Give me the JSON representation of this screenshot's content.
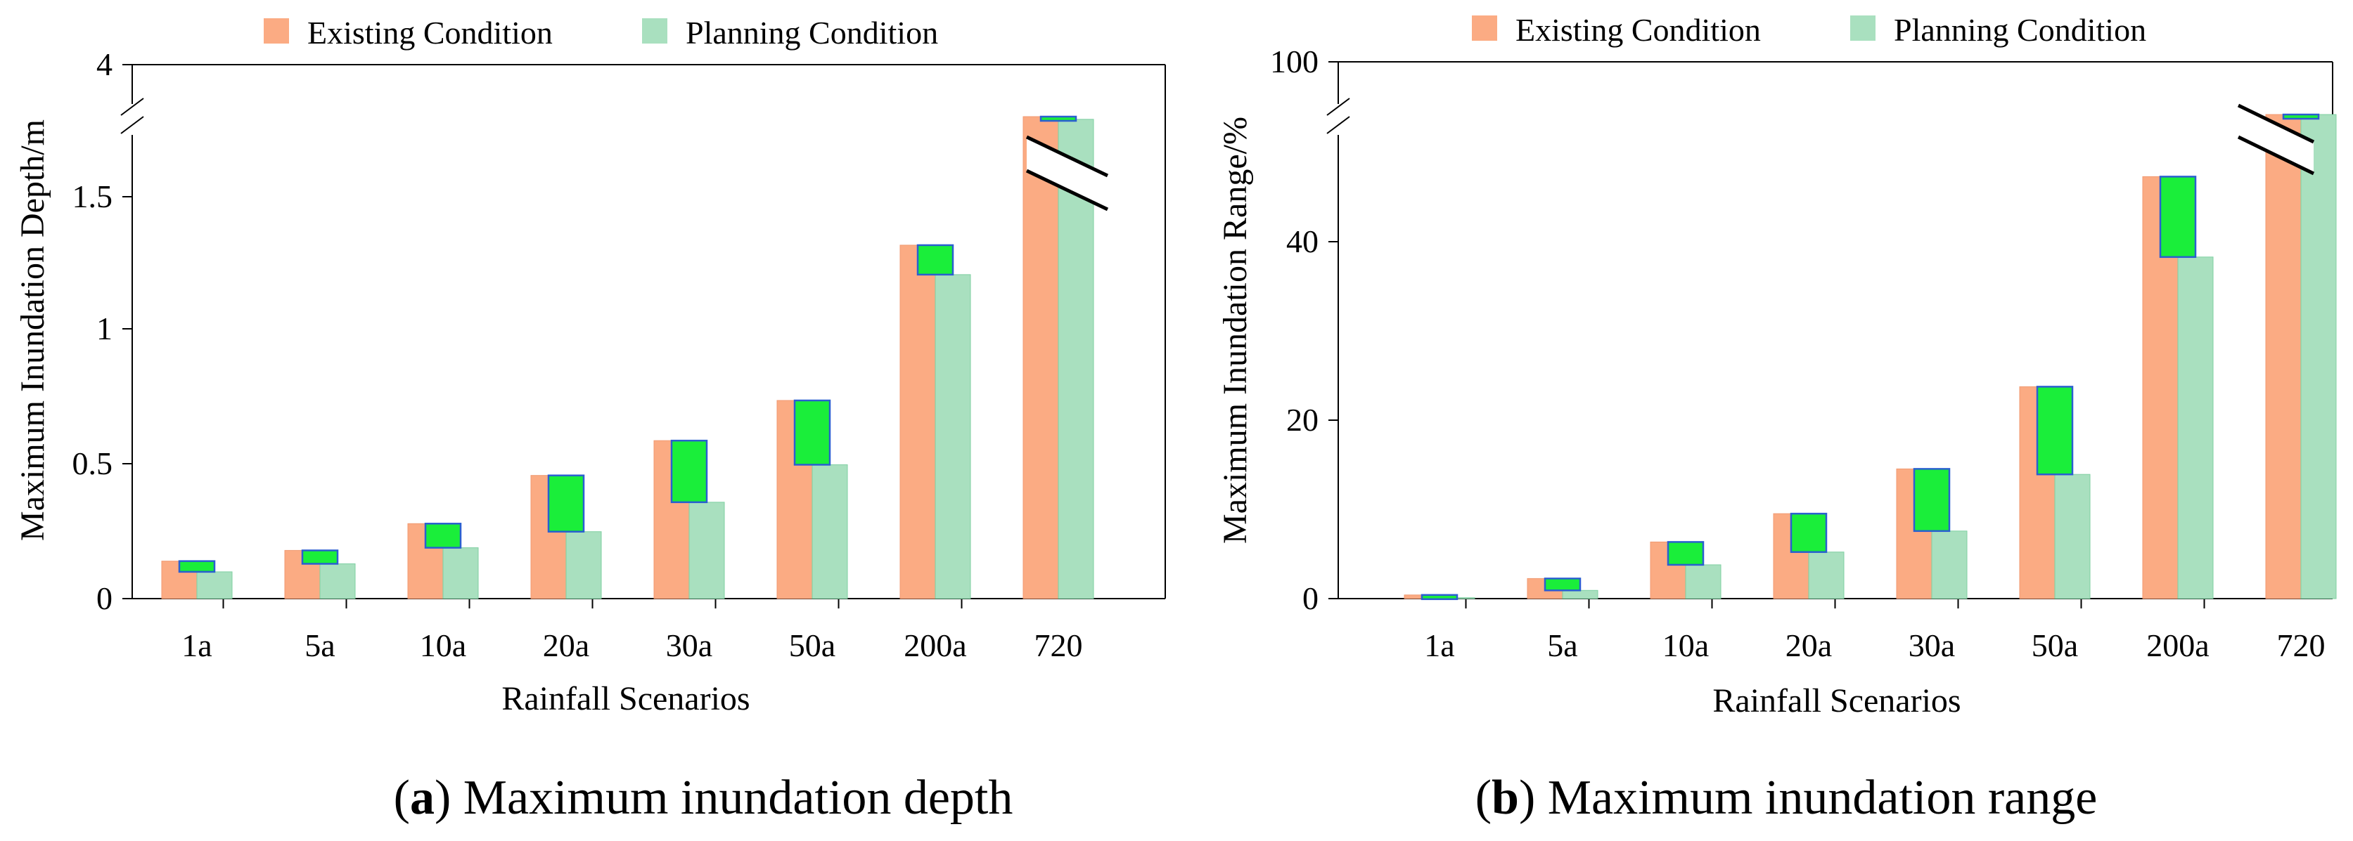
{
  "colors": {
    "existing": "#fbab83",
    "planning": "#a9e0bf",
    "reduction": "#1aee3a",
    "reduction_edge": "#2a5fd0"
  },
  "legend": {
    "existing": "Existing Condition",
    "planning": "Planning Condition"
  },
  "chart_data": [
    {
      "type": "bar",
      "categories": [
        "1a",
        "5a",
        "10a",
        "20a",
        "30a",
        "50a",
        "200a",
        "720"
      ],
      "series": [
        {
          "name": "Existing Condition",
          "values": [
            0.14,
            0.18,
            0.28,
            0.46,
            0.59,
            0.74,
            1.32,
            1.8
          ]
        },
        {
          "name": "Planning Condition",
          "values": [
            0.1,
            0.13,
            0.19,
            0.25,
            0.36,
            0.5,
            1.21,
            1.79
          ]
        }
      ],
      "xlabel": "Rainfall Scenarios",
      "ylabel": "Maximum Inundation Depth/m",
      "ylim": [
        0,
        4
      ],
      "axis_break": [
        1.8,
        4
      ],
      "yticks": [
        "0",
        "0.5",
        "1",
        "1.5",
        "4"
      ],
      "caption_letter": "a",
      "caption_text": "Maximum inundation depth",
      "grid": false,
      "legend_position": "top"
    },
    {
      "type": "bar",
      "categories": [
        "1a",
        "5a",
        "10a",
        "20a",
        "30a",
        "50a",
        "200a",
        "720"
      ],
      "series": [
        {
          "name": "Existing Condition",
          "values": [
            0.4,
            2.2,
            6.2,
            9.3,
            14.2,
            23.2,
            46.2,
            97
          ]
        },
        {
          "name": "Planning Condition",
          "values": [
            0.1,
            0.9,
            3.7,
            5.1,
            7.4,
            13.6,
            37.4,
            96
          ]
        }
      ],
      "xlabel": "Rainfall Scenarios",
      "ylabel": "Maximum Inundation Range/%",
      "ylim": [
        0,
        100
      ],
      "axis_break": [
        53,
        100
      ],
      "yticks": [
        "0",
        "20",
        "40",
        "100"
      ],
      "caption_letter": "b",
      "caption_text": "Maximum inundation range",
      "grid": false,
      "legend_position": "top"
    }
  ]
}
